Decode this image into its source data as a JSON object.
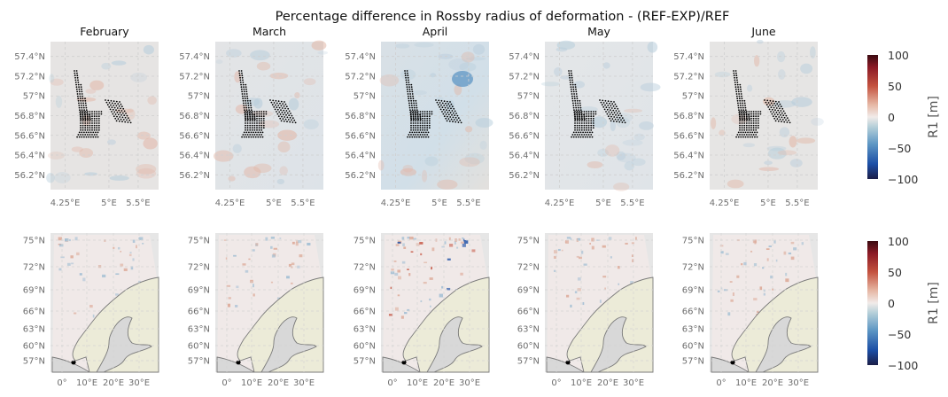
{
  "suptitle": "Percentage difference in Rossby radius of deformation - (REF-EXP)/REF",
  "colors": {
    "panel_background": "#e6e6e6",
    "land": "#ecebd8",
    "lake": "#d8d8d8",
    "coastline": "#7a7a7a",
    "station_marker": "#000000",
    "colormap_balance": [
      "#1b1d48",
      "#1c4fa6",
      "#5d96c4",
      "#b5cfd9",
      "#f1ebe9",
      "#e0a98f",
      "#c4523f",
      "#8c1b26",
      "#3b0a11"
    ]
  },
  "chart_data": [
    {
      "type": "heatmap",
      "row": "zoomed North Sea region",
      "months": [
        "February",
        "March",
        "April",
        "May",
        "June"
      ],
      "y_tick_labels": [
        "57.4°N",
        "57.2°N",
        "57°N",
        "56.8°N",
        "56.6°N",
        "56.4°N",
        "56.2°N"
      ],
      "y_ticks": [
        57.4,
        57.2,
        57.0,
        56.8,
        56.6,
        56.4,
        56.2
      ],
      "x_tick_labels": [
        "4.25°E",
        "5°E",
        "5.5°E"
      ],
      "x_ticks": [
        4.25,
        5.0,
        5.5
      ],
      "ylim": [
        56.05,
        57.55
      ],
      "xlim": [
        4.0,
        5.85
      ],
      "station_array_description": "wind-farm station grid",
      "grid": true
    },
    {
      "type": "heatmap",
      "row": "full model domain",
      "months": [
        "February",
        "March",
        "April",
        "May",
        "June"
      ],
      "y_tick_labels": [
        "75°N",
        "72°N",
        "69°N",
        "66°N",
        "63°N",
        "60°N",
        "57°N"
      ],
      "y_ticks": [
        75,
        72,
        69,
        66,
        63,
        60,
        57
      ],
      "x_tick_labels": [
        "0°",
        "10°E",
        "20°E",
        "30°E"
      ],
      "x_ticks": [
        0,
        10,
        20,
        30
      ],
      "grid": true
    }
  ],
  "colorbars": [
    {
      "label": "R1 [m]",
      "ticks": [
        "100",
        "50",
        "0",
        "−50",
        "−100"
      ],
      "vmin": -100,
      "vmax": 100
    },
    {
      "label": "R1 [m]",
      "ticks": [
        "100",
        "50",
        "0",
        "−50",
        "−100"
      ],
      "vmin": -100,
      "vmax": 100
    }
  ]
}
